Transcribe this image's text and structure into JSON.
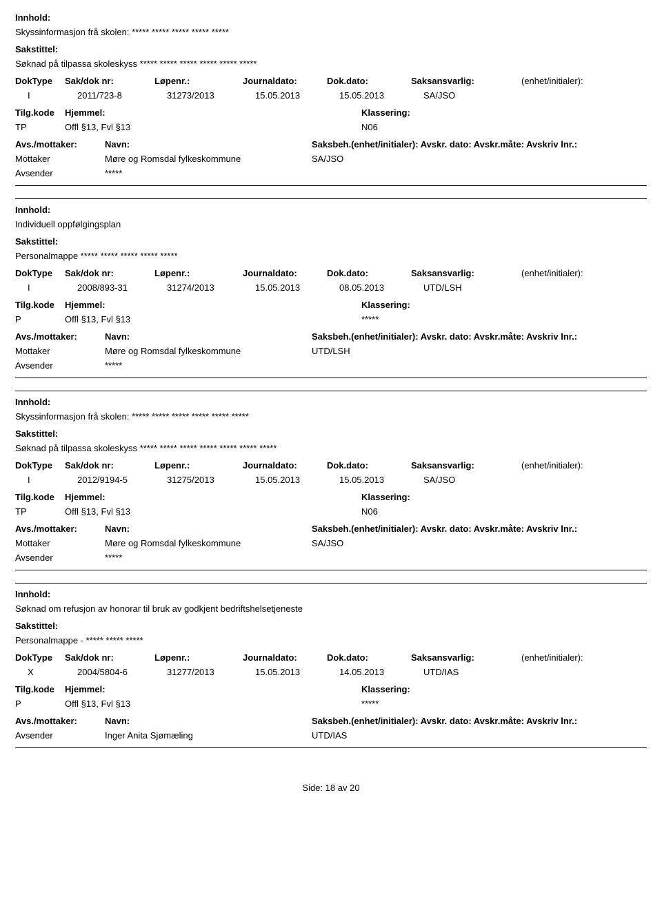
{
  "labels": {
    "innhold": "Innhold:",
    "sakstittel": "Sakstittel:",
    "doktype": "DokType",
    "sakdok": "Sak/dok nr:",
    "lopenr": "Løpenr.:",
    "journaldato": "Journaldato:",
    "dokdato": "Dok.dato:",
    "saksansvarlig": "Saksansvarlig:",
    "enhet_initialer": "(enhet/initialer):",
    "tilgkode": "Tilg.kode",
    "hjemmel": "Hjemmel:",
    "klassering": "Klassering:",
    "avsmottaker": "Avs./mottaker:",
    "navn": "Navn:",
    "saksbeh": "Saksbeh.(enhet/initialer): Avskr. dato:  Avskr.måte:  Avskriv lnr.:",
    "mottaker": "Mottaker",
    "avsender": "Avsender"
  },
  "records": [
    {
      "innhold": "Skyssinformasjon frå skolen: ***** ***** ***** ***** *****",
      "sakstittel": "Søknad på tilpassa skoleskyss ***** ***** ***** ***** ***** *****",
      "doktype": "I",
      "sakdok": "2011/723-8",
      "lopenr": "31273/2013",
      "jdato": "15.05.2013",
      "ddato": "15.05.2013",
      "ansvarlig": "SA/JSO",
      "tilgkode": "TP",
      "hjemmel": "Offl §13, Fvl §13",
      "klassering": "N06",
      "parties": [
        {
          "role": "Mottaker",
          "navn": "Møre og Romsdal fylkeskommune",
          "saksbeh": "SA/JSO"
        },
        {
          "role": "Avsender",
          "navn": "*****",
          "saksbeh": ""
        }
      ],
      "top_border": false
    },
    {
      "innhold": "Individuell oppfølgingsplan",
      "sakstittel": "Personalmappe ***** ***** ***** ***** *****",
      "doktype": "I",
      "sakdok": "2008/893-31",
      "lopenr": "31274/2013",
      "jdato": "15.05.2013",
      "ddato": "08.05.2013",
      "ansvarlig": "UTD/LSH",
      "tilgkode": "P",
      "hjemmel": "Offl §13, Fvl §13",
      "klassering": "*****",
      "parties": [
        {
          "role": "Mottaker",
          "navn": "Møre og Romsdal fylkeskommune",
          "saksbeh": "UTD/LSH"
        },
        {
          "role": "Avsender",
          "navn": "*****",
          "saksbeh": ""
        }
      ],
      "top_border": true
    },
    {
      "innhold": "Skyssinformasjon frå skolen: ***** ***** ***** ***** ***** *****",
      "sakstittel": "Søknad på tilpassa skoleskyss ***** ***** ***** ***** ***** ***** *****",
      "doktype": "I",
      "sakdok": "2012/9194-5",
      "lopenr": "31275/2013",
      "jdato": "15.05.2013",
      "ddato": "15.05.2013",
      "ansvarlig": "SA/JSO",
      "tilgkode": "TP",
      "hjemmel": "Offl §13, Fvl §13",
      "klassering": "N06",
      "parties": [
        {
          "role": "Mottaker",
          "navn": "Møre og Romsdal fylkeskommune",
          "saksbeh": "SA/JSO"
        },
        {
          "role": "Avsender",
          "navn": "*****",
          "saksbeh": ""
        }
      ],
      "top_border": true
    },
    {
      "innhold": "Søknad om refusjon av honorar til bruk av godkjent bedriftshelsetjeneste",
      "sakstittel": "Personalmappe - ***** ***** *****",
      "doktype": "X",
      "sakdok": "2004/5804-6",
      "lopenr": "31277/2013",
      "jdato": "15.05.2013",
      "ddato": "14.05.2013",
      "ansvarlig": "UTD/IAS",
      "tilgkode": "P",
      "hjemmel": "Offl §13, Fvl §13",
      "klassering": "*****",
      "parties": [
        {
          "role": "Avsender",
          "navn": "Inger Anita Sjømæling",
          "saksbeh": "UTD/IAS"
        }
      ],
      "top_border": true
    }
  ],
  "footer": {
    "side_label": "Side:",
    "page": "18",
    "av": "av",
    "total": "20"
  }
}
